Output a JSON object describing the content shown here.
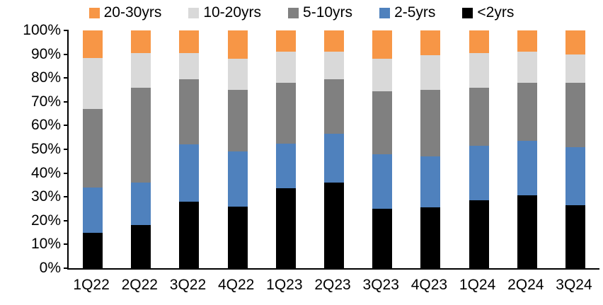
{
  "chart_data": {
    "type": "bar",
    "stacked": true,
    "percent": true,
    "title": "",
    "xlabel": "",
    "ylabel": "",
    "ylim": [
      0,
      100
    ],
    "grid": false,
    "legend_position": "top",
    "yticks": [
      "0%",
      "10%",
      "20%",
      "30%",
      "40%",
      "50%",
      "60%",
      "70%",
      "80%",
      "90%",
      "100%"
    ],
    "categories": [
      "1Q22",
      "2Q22",
      "3Q22",
      "4Q22",
      "1Q23",
      "2Q23",
      "3Q23",
      "4Q23",
      "1Q24",
      "2Q24",
      "3Q24"
    ],
    "series": [
      {
        "name": "<2yrs",
        "color": "#000000",
        "values": [
          15,
          18,
          28,
          26,
          33.5,
          36,
          25,
          25.5,
          28.5,
          30.5,
          26.5
        ]
      },
      {
        "name": "2-5yrs",
        "color": "#4F81BD",
        "values": [
          19,
          18,
          24,
          23,
          19,
          20.5,
          23,
          21.5,
          23,
          23,
          24.5
        ]
      },
      {
        "name": "5-10yrs",
        "color": "#808080",
        "values": [
          33,
          40,
          27.5,
          26,
          25.5,
          23,
          26.5,
          28,
          24.5,
          24.5,
          27
        ]
      },
      {
        "name": "10-20yrs",
        "color": "#D9D9D9",
        "values": [
          21.5,
          14.5,
          11,
          13,
          13,
          11.5,
          13.5,
          14.5,
          14.5,
          13,
          12
        ]
      },
      {
        "name": "20-30yrs",
        "color": "#F79646",
        "values": [
          11.5,
          9.5,
          9.5,
          12,
          9,
          9,
          12,
          10.5,
          9.5,
          9,
          10
        ]
      }
    ],
    "legend_order": [
      "20-30yrs",
      "10-20yrs",
      "5-10yrs",
      "2-5yrs",
      "<2yrs"
    ],
    "axis_color": "#000000"
  }
}
